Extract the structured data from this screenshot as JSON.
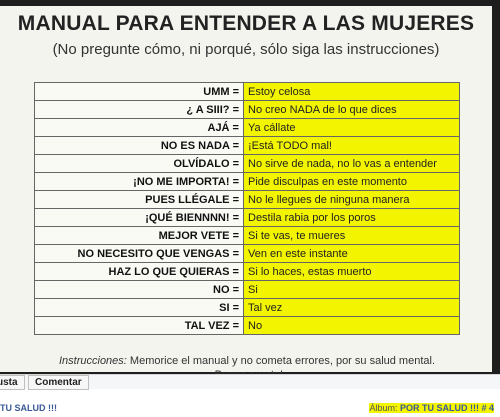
{
  "poster": {
    "title": "MANUAL PARA ENTENDER A LAS MUJERES",
    "subtitle": "(No pregunte cómo, ni porqué, sólo siga las instrucciones)",
    "rows": [
      {
        "k": "UMM =",
        "v": "Estoy celosa"
      },
      {
        "k": "¿ A SIII? =",
        "v": "No creo NADA de lo que dices"
      },
      {
        "k": "AJÁ =",
        "v": "Ya cállate"
      },
      {
        "k": "NO ES NADA =",
        "v": "¡Está TODO mal!"
      },
      {
        "k": "OLVÍDALO =",
        "v": "No sirve de nada, no lo vas a entender"
      },
      {
        "k": "¡NO ME IMPORTA! =",
        "v": "Pide disculpas en este momento"
      },
      {
        "k": "PUES LLÉGALE =",
        "v": "No le llegues de ninguna manera"
      },
      {
        "k": "¡QUÉ BIENNNN! =",
        "v": "Destila rabia por los poros"
      },
      {
        "k": "MEJOR VETE =",
        "v": "Si te vas, te mueres"
      },
      {
        "k": "NO NECESITO QUE VENGAS =",
        "v": "Ven en este instante"
      },
      {
        "k": "HAZ LO QUE QUIERAS =",
        "v": "Si lo haces, estas muerto"
      },
      {
        "k": "NO =",
        "v": "Si"
      },
      {
        "k": "SI =",
        "v": "Tal vez"
      },
      {
        "k": "TAL VEZ =",
        "v": "No"
      }
    ],
    "instructions_label": "Instrucciones:",
    "instructions_text": "Memorice el manual y no cometa errores, por su salud mental.",
    "instructions_line2": "¡Buena suerte!"
  },
  "actions": {
    "like": "usta",
    "comment": "Comentar"
  },
  "footer": {
    "left_link": "TU SALUD !!!",
    "album_label": "Álbum:",
    "album_name": "POR TU SALUD !!! # 4"
  }
}
